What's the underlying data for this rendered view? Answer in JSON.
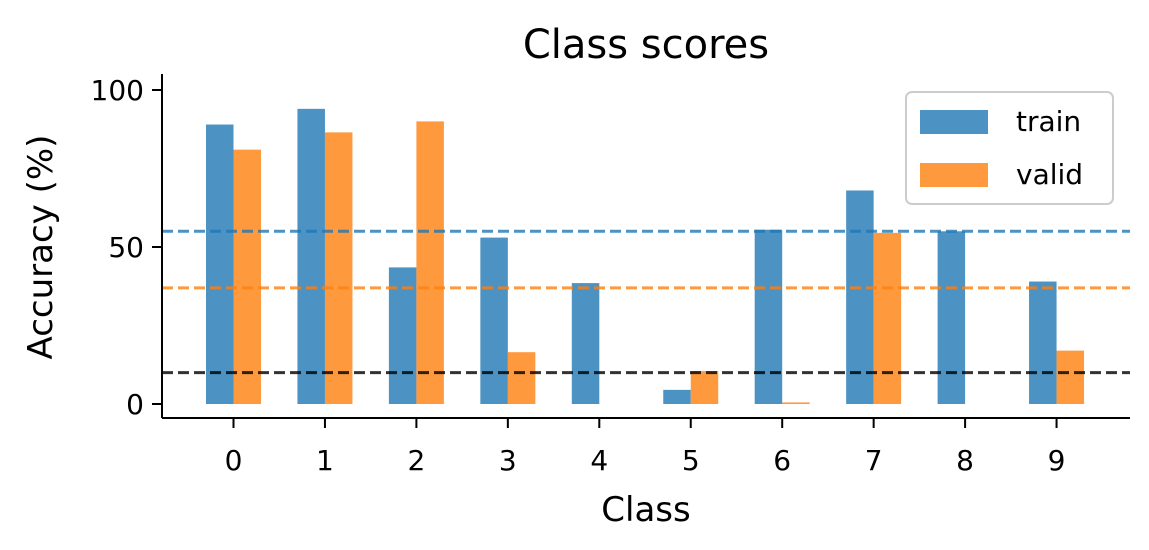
{
  "chart_data": {
    "type": "bar",
    "title": "Class scores",
    "xlabel": "Class",
    "ylabel": "Accuracy (%)",
    "categories": [
      "0",
      "1",
      "2",
      "3",
      "4",
      "5",
      "6",
      "7",
      "8",
      "9"
    ],
    "series": [
      {
        "name": "train",
        "color": "#1f77b4",
        "values": [
          89,
          94,
          43.5,
          53,
          38.5,
          4.5,
          55.5,
          68,
          55,
          39
        ]
      },
      {
        "name": "valid",
        "color": "#ff7f0e",
        "values": [
          81,
          86.5,
          90,
          16.5,
          0,
          10.5,
          0.5,
          54.5,
          0,
          17
        ]
      }
    ],
    "reference_lines": [
      {
        "value": 55,
        "color": "#1f77b4",
        "style": "dashed"
      },
      {
        "value": 37,
        "color": "#ff7f0e",
        "style": "dashed"
      },
      {
        "value": 10,
        "color": "#000000",
        "style": "dashed"
      }
    ],
    "yticks": [
      0,
      50,
      100
    ],
    "ylim": [
      -4.5,
      105
    ],
    "legend_position": "top-right",
    "grid": false
  }
}
